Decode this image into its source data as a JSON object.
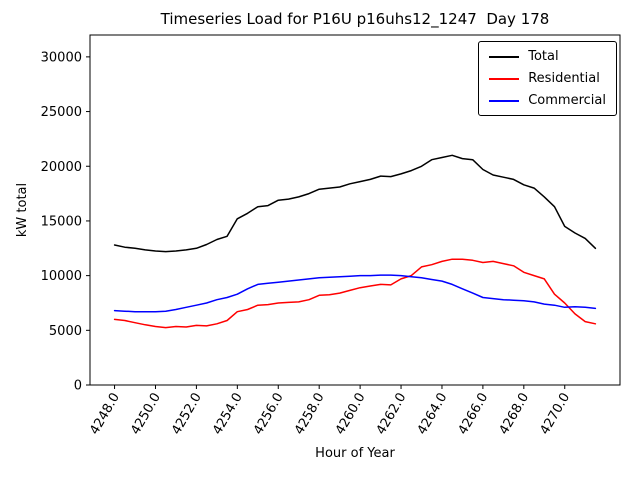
{
  "chart_data": {
    "type": "line",
    "title": "Timeseries Load for P16U p16uhs12_1247  Day 178",
    "xlabel": "Hour of Year",
    "ylabel": "kW total",
    "xlim": [
      4246.8,
      4272.7
    ],
    "ylim": [
      0,
      32000
    ],
    "grid": false,
    "legend_position": "upper right",
    "xticks": {
      "values": [
        4248,
        4250,
        4252,
        4254,
        4256,
        4258,
        4260,
        4262,
        4264,
        4266,
        4268,
        4270
      ],
      "labels": [
        "4248.0",
        "4250.0",
        "4252.0",
        "4254.0",
        "4256.0",
        "4258.0",
        "4260.0",
        "4262.0",
        "4264.0",
        "4266.0",
        "4268.0",
        "4270.0"
      ]
    },
    "yticks": {
      "values": [
        0,
        5000,
        10000,
        15000,
        20000,
        25000,
        30000
      ],
      "labels": [
        "0",
        "5000",
        "10000",
        "15000",
        "20000",
        "25000",
        "30000"
      ]
    },
    "x": [
      4248,
      4248.5,
      4249,
      4249.5,
      4250,
      4250.5,
      4251,
      4251.5,
      4252,
      4252.5,
      4253,
      4253.5,
      4254,
      4254.5,
      4255,
      4255.5,
      4256,
      4256.5,
      4257,
      4257.5,
      4258,
      4258.5,
      4259,
      4259.5,
      4260,
      4260.5,
      4261,
      4261.5,
      4262,
      4262.5,
      4263,
      4263.5,
      4264,
      4264.5,
      4265,
      4265.5,
      4266,
      4266.5,
      4267,
      4267.5,
      4268,
      4268.5,
      4269,
      4269.5,
      4270,
      4270.5,
      4271,
      4271.5
    ],
    "series": [
      {
        "name": "Total",
        "color": "#000000",
        "values": [
          12800,
          12600,
          12500,
          12350,
          12250,
          12200,
          12250,
          12350,
          12500,
          12850,
          13300,
          13600,
          15200,
          15700,
          16300,
          16400,
          16900,
          17000,
          17200,
          17500,
          17900,
          18000,
          18100,
          18400,
          18600,
          18800,
          19100,
          19050,
          19300,
          19600,
          20000,
          20600,
          20800,
          21000,
          20700,
          20600,
          19700,
          19200,
          19000,
          18800,
          18300,
          18000,
          17200,
          16300,
          14500,
          13900,
          13400,
          12500
        ]
      },
      {
        "name": "Residential",
        "color": "#ff0000",
        "values": [
          6000,
          5900,
          5700,
          5500,
          5350,
          5250,
          5350,
          5300,
          5450,
          5400,
          5600,
          5900,
          6700,
          6900,
          7300,
          7350,
          7500,
          7550,
          7600,
          7800,
          8200,
          8250,
          8400,
          8650,
          8900,
          9050,
          9200,
          9150,
          9700,
          10000,
          10800,
          11000,
          11300,
          11500,
          11500,
          11400,
          11200,
          11300,
          11100,
          10900,
          10300,
          10000,
          9700,
          8300,
          7500,
          6500,
          5800,
          5600
        ]
      },
      {
        "name": "Commercial",
        "color": "#0000ff",
        "values": [
          6800,
          6750,
          6700,
          6700,
          6700,
          6750,
          6900,
          7100,
          7300,
          7500,
          7800,
          8000,
          8300,
          8800,
          9200,
          9300,
          9400,
          9500,
          9600,
          9700,
          9800,
          9850,
          9900,
          9950,
          10000,
          10000,
          10050,
          10050,
          10000,
          9900,
          9800,
          9650,
          9500,
          9200,
          8800,
          8400,
          8000,
          7900,
          7800,
          7750,
          7700,
          7600,
          7400,
          7300,
          7100,
          7150,
          7100,
          7000
        ]
      }
    ]
  }
}
